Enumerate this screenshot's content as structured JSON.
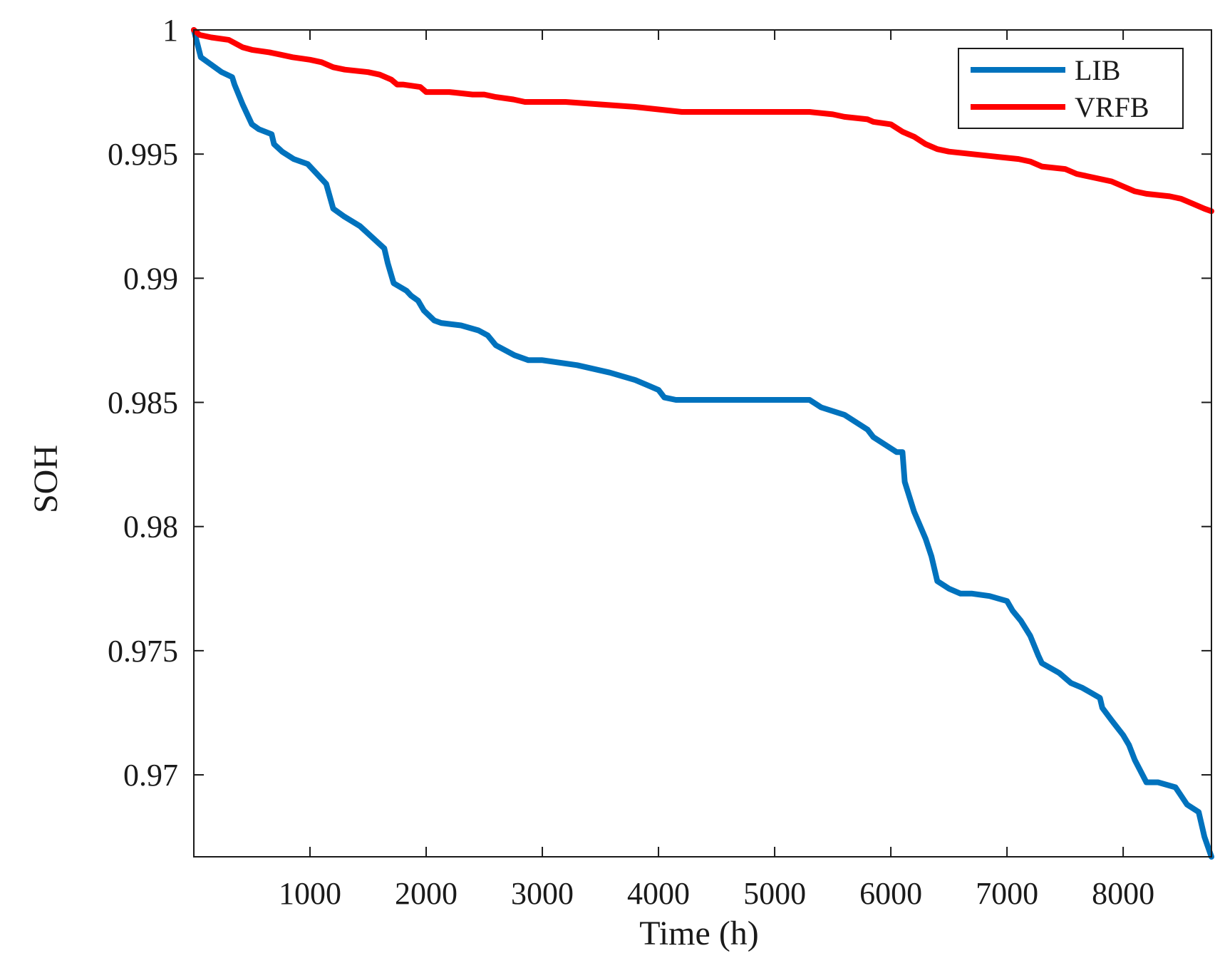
{
  "chart_data": {
    "type": "line",
    "xlabel": "Time (h)",
    "ylabel": "SOH",
    "xlim": [
      0,
      8760
    ],
    "ylim": [
      0.9667,
      1.0
    ],
    "xticks": [
      1000,
      2000,
      3000,
      4000,
      5000,
      6000,
      7000,
      8000
    ],
    "yticks": [
      0.97,
      0.975,
      0.98,
      0.985,
      0.99,
      0.995,
      1
    ],
    "ytick_labels": [
      "0.97",
      "0.975",
      "0.98",
      "0.985",
      "0.99",
      "0.995",
      "1"
    ],
    "grid": false,
    "legend_position": "top-right",
    "series": [
      {
        "name": "LIB",
        "color": "#0072BD",
        "x": [
          0,
          60,
          150,
          240,
          330,
          350,
          420,
          500,
          560,
          670,
          690,
          760,
          860,
          980,
          1060,
          1140,
          1200,
          1290,
          1430,
          1570,
          1640,
          1670,
          1720,
          1830,
          1870,
          1930,
          1980,
          2070,
          2130,
          2300,
          2450,
          2530,
          2600,
          2760,
          2880,
          2960,
          3000,
          3300,
          3580,
          3800,
          3900,
          4000,
          4050,
          4150,
          4250,
          4600,
          4900,
          5000,
          5200,
          5300,
          5400,
          5600,
          5800,
          5850,
          6050,
          6100,
          6120,
          6200,
          6300,
          6350,
          6400,
          6500,
          6600,
          6700,
          6850,
          7000,
          7050,
          7120,
          7200,
          7270,
          7300,
          7450,
          7550,
          7650,
          7800,
          7820,
          7900,
          8000,
          8050,
          8100,
          8200,
          8300,
          8450,
          8550,
          8650,
          8700,
          8760
        ],
        "y": [
          1.0,
          0.9989,
          0.9986,
          0.9983,
          0.9981,
          0.9978,
          0.997,
          0.9962,
          0.996,
          0.9958,
          0.9954,
          0.9951,
          0.9948,
          0.9946,
          0.9942,
          0.9938,
          0.9928,
          0.9925,
          0.9921,
          0.9915,
          0.9912,
          0.9906,
          0.9898,
          0.9895,
          0.9893,
          0.9891,
          0.9887,
          0.9883,
          0.9882,
          0.9881,
          0.9879,
          0.9877,
          0.9873,
          0.9869,
          0.9867,
          0.9867,
          0.9867,
          0.9865,
          0.9862,
          0.9859,
          0.9857,
          0.9855,
          0.9852,
          0.9851,
          0.9851,
          0.9851,
          0.9851,
          0.9851,
          0.9851,
          0.9851,
          0.9848,
          0.9845,
          0.9839,
          0.9836,
          0.983,
          0.983,
          0.9818,
          0.9806,
          0.9795,
          0.9788,
          0.9778,
          0.9775,
          0.9773,
          0.9773,
          0.9772,
          0.977,
          0.9766,
          0.9762,
          0.9756,
          0.9748,
          0.9745,
          0.9741,
          0.9737,
          0.9735,
          0.9731,
          0.9727,
          0.9722,
          0.9716,
          0.9712,
          0.9706,
          0.9697,
          0.9697,
          0.9695,
          0.9688,
          0.9685,
          0.9675,
          0.9667
        ]
      },
      {
        "name": "VRFB",
        "color": "#FF0000",
        "x": [
          0,
          50,
          150,
          300,
          420,
          500,
          650,
          750,
          850,
          1000,
          1100,
          1200,
          1300,
          1500,
          1600,
          1700,
          1750,
          1800,
          1950,
          2000,
          2200,
          2400,
          2500,
          2600,
          2750,
          2850,
          3000,
          3200,
          3500,
          3800,
          4000,
          4200,
          4500,
          5000,
          5200,
          5300,
          5500,
          5600,
          5800,
          5850,
          6000,
          6100,
          6200,
          6300,
          6400,
          6500,
          6700,
          6900,
          7100,
          7200,
          7300,
          7500,
          7600,
          7800,
          7900,
          8000,
          8100,
          8200,
          8400,
          8500,
          8600,
          8700,
          8760
        ],
        "y": [
          1.0,
          0.9998,
          0.9997,
          0.9996,
          0.9993,
          0.9992,
          0.9991,
          0.999,
          0.9989,
          0.9988,
          0.9987,
          0.9985,
          0.9984,
          0.9983,
          0.9982,
          0.998,
          0.9978,
          0.9978,
          0.9977,
          0.9975,
          0.9975,
          0.9974,
          0.9974,
          0.9973,
          0.9972,
          0.9971,
          0.9971,
          0.9971,
          0.997,
          0.9969,
          0.9968,
          0.9967,
          0.9967,
          0.9967,
          0.9967,
          0.9967,
          0.9966,
          0.9965,
          0.9964,
          0.9963,
          0.9962,
          0.9959,
          0.9957,
          0.9954,
          0.9952,
          0.9951,
          0.995,
          0.9949,
          0.9948,
          0.9947,
          0.9945,
          0.9944,
          0.9942,
          0.994,
          0.9939,
          0.9937,
          0.9935,
          0.9934,
          0.9933,
          0.9932,
          0.993,
          0.9928,
          0.9927
        ]
      }
    ]
  }
}
